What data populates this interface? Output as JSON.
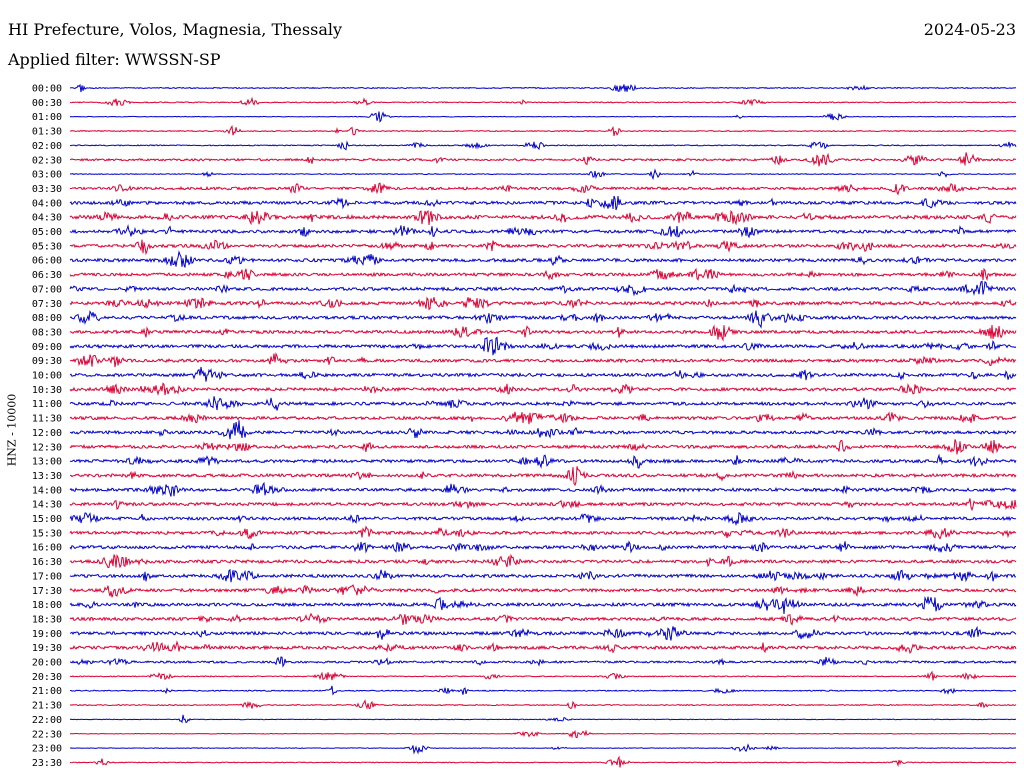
{
  "header": {
    "station": "HI Prefecture, Volos, Magnesia, Thessaly",
    "date": "2024-05-23",
    "filter": "Applied filter: WWSSN-SP"
  },
  "chart_data": {
    "type": "line",
    "title": "HI Prefecture, Volos, Magnesia, Thessaly",
    "ylabel": "HNZ - 10000",
    "colors": [
      "#0000cc",
      "#dd0033"
    ],
    "rows": [
      "00:00",
      "00:30",
      "01:00",
      "01:30",
      "02:00",
      "02:30",
      "03:00",
      "03:30",
      "04:00",
      "04:30",
      "05:00",
      "05:30",
      "06:00",
      "06:30",
      "07:00",
      "07:30",
      "08:00",
      "08:30",
      "09:00",
      "09:30",
      "10:00",
      "10:30",
      "11:00",
      "11:30",
      "12:00",
      "12:30",
      "13:00",
      "13:30",
      "14:00",
      "14:30",
      "15:00",
      "15:30",
      "16:00",
      "16:30",
      "17:00",
      "17:30",
      "18:00",
      "18:30",
      "19:00",
      "19:30",
      "20:00",
      "20:30",
      "21:00",
      "21:30",
      "22:00",
      "22:30",
      "23:00",
      "23:30"
    ],
    "noise_level": [
      1,
      1,
      0.6,
      1,
      1,
      2,
      0.8,
      2.5,
      3,
      3.5,
      3,
      3,
      3,
      3,
      3,
      3.2,
      3,
      3,
      3,
      3,
      3,
      3,
      3,
      3,
      3,
      3,
      3,
      3,
      3,
      3,
      3,
      3,
      3,
      3,
      3,
      3,
      3,
      3,
      3,
      3,
      2,
      1,
      1,
      1,
      0.6,
      0.6,
      0.6,
      0.8
    ]
  }
}
